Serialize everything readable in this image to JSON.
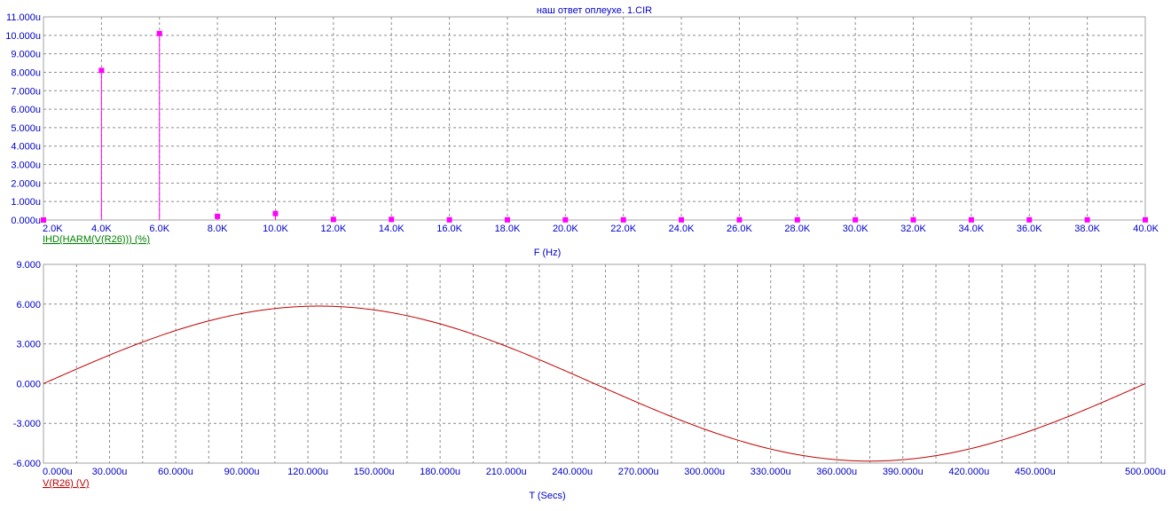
{
  "window": {
    "title": "наш ответ оплеухе. 1.CIR"
  },
  "colors": {
    "frame": "#a0a0a0",
    "grid": "#8c8c8c",
    "tick_text": "#0000c8",
    "harm_series": "#ff00ff",
    "harm_label": "#008000",
    "v_series": "#c00000"
  },
  "chart_data": [
    {
      "type": "bar",
      "title": "наш ответ оплеухе. 1.CIR",
      "xlabel": "F (Hz)",
      "ylabel": "",
      "series": [
        {
          "name": "IHD(HARM(V(R26))) (%)",
          "x": [
            2000,
            4000,
            6000,
            8000,
            10000,
            12000,
            14000,
            16000,
            18000,
            20000,
            22000,
            24000,
            26000,
            28000,
            30000,
            32000,
            34000,
            36000,
            38000,
            40000
          ],
          "values": [
            0.0,
            8.1,
            10.1,
            0.2,
            0.35,
            0.03,
            0.03,
            0.01,
            0.01,
            0.01,
            0.01,
            0.01,
            0.01,
            0.01,
            0.01,
            0.01,
            0.01,
            0.01,
            0.01,
            0.01
          ]
        }
      ],
      "xlim": [
        2000,
        40000
      ],
      "ylim": [
        0,
        11
      ],
      "x_ticks": [
        "2.0K",
        "4.0K",
        "6.0K",
        "8.0K",
        "10.0K",
        "12.0K",
        "14.0K",
        "16.0K",
        "18.0K",
        "20.0K",
        "22.0K",
        "24.0K",
        "26.0K",
        "28.0K",
        "30.0K",
        "32.0K",
        "34.0K",
        "36.0K",
        "38.0K",
        "40.0K"
      ],
      "y_ticks": [
        "0.000u",
        "1.000u",
        "2.000u",
        "3.000u",
        "4.000u",
        "5.000u",
        "6.000u",
        "7.000u",
        "8.000u",
        "9.000u",
        "10.000u",
        "11.000u"
      ],
      "grid": true
    },
    {
      "type": "line",
      "xlabel": "T (Secs)",
      "ylabel": "",
      "series": [
        {
          "name": "V(R26) (V)",
          "amplitude": 5.85,
          "period": 500,
          "x_unit": "u"
        }
      ],
      "xlim": [
        0,
        500
      ],
      "ylim": [
        -6,
        9
      ],
      "x_ticks": [
        "0.000u",
        "30.000u",
        "60.000u",
        "90.000u",
        "120.000u",
        "150.000u",
        "180.000u",
        "210.000u",
        "240.000u",
        "270.000u",
        "300.000u",
        "330.000u",
        "360.000u",
        "390.000u",
        "420.000u",
        "450.000u",
        "500.000u"
      ],
      "y_ticks": [
        "-6.000",
        "-3.000",
        "0.000",
        "3.000",
        "6.000",
        "9.000"
      ],
      "grid": true
    }
  ]
}
